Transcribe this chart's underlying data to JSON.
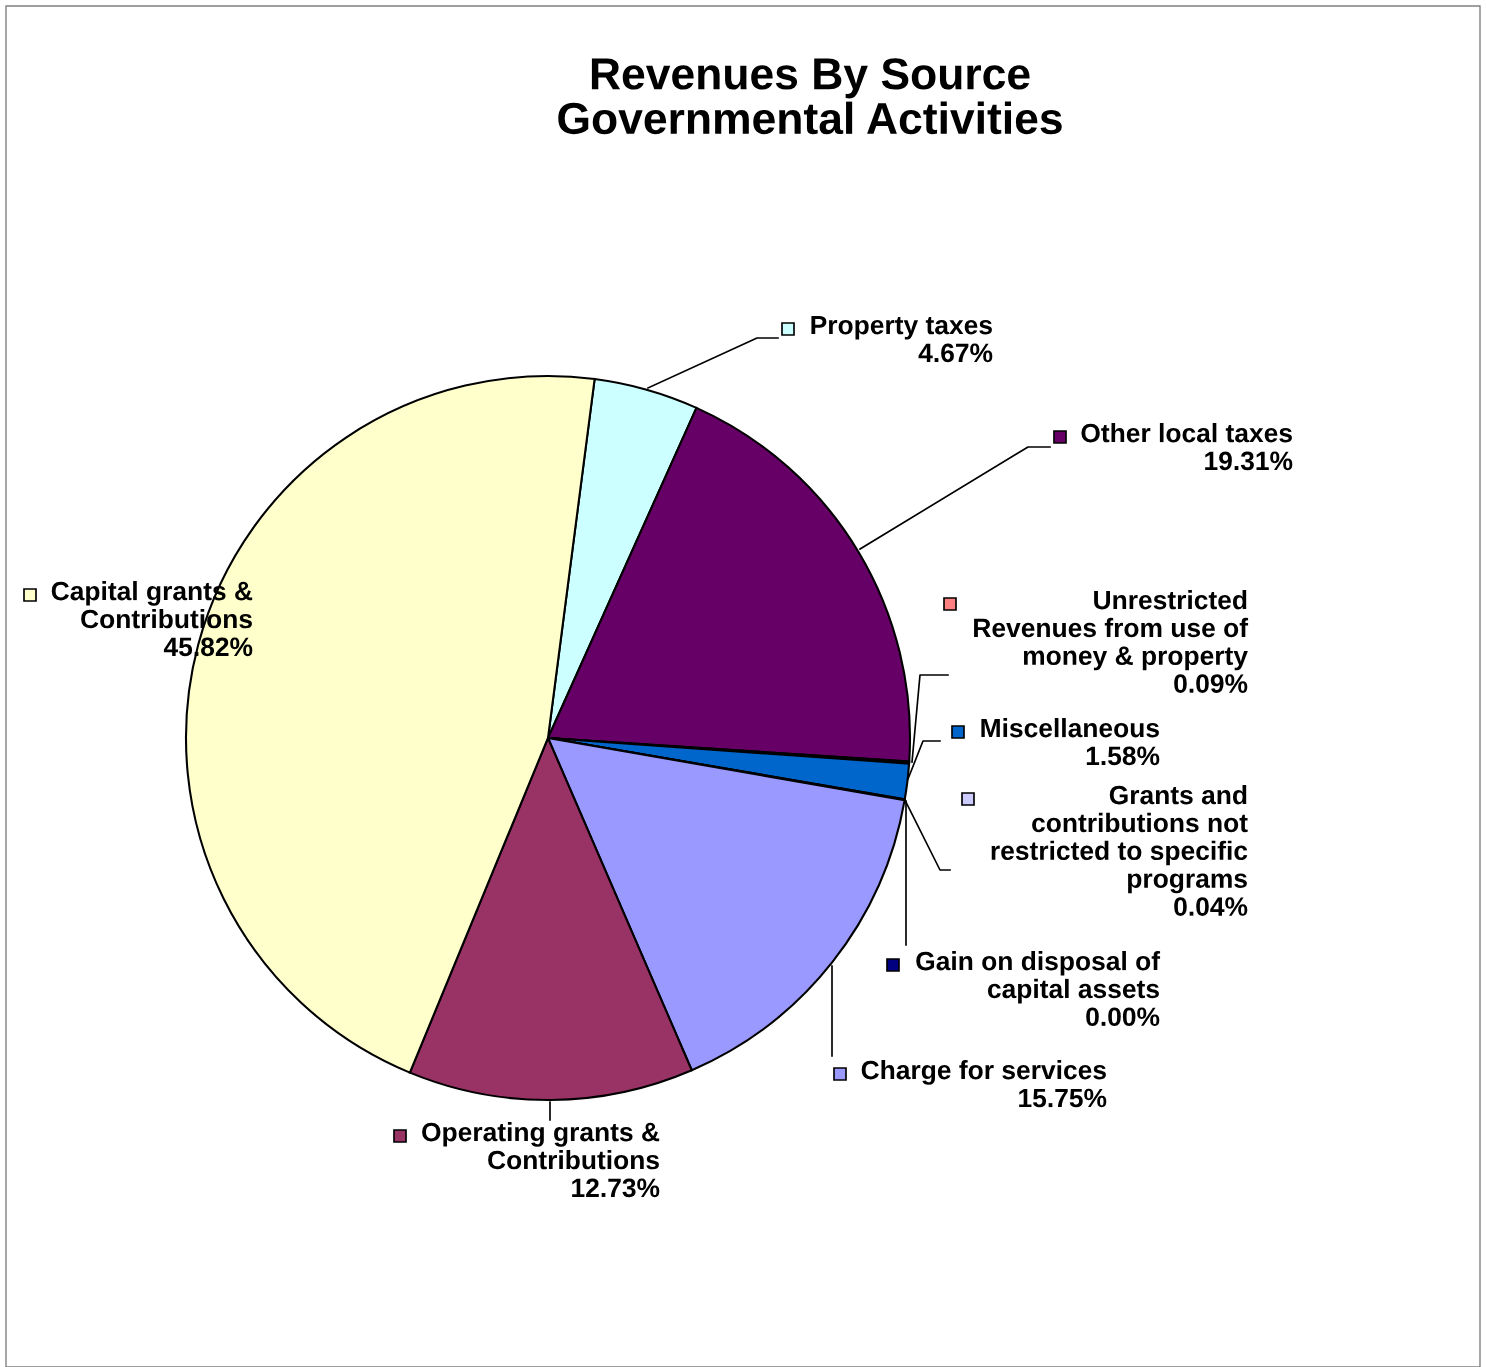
{
  "chart_data": {
    "type": "pie",
    "title": "Revenues By Source\nGovernmental Activities",
    "categories": [
      "Property taxes",
      "Other local taxes",
      "Unrestricted\nRevenues from use of\nmoney & property",
      "Miscellaneous",
      "Grants and\ncontributions not\nrestricted to specific\nprograms",
      "Gain on disposal of\ncapital assets",
      "Charge for services",
      "Operating grants &\nContributions",
      "Capital grants &\nContributions"
    ],
    "legend": "right",
    "values": [
      4.67,
      19.31,
      0.09,
      1.58,
      0.04,
      0.0,
      15.75,
      12.73,
      45.82
    ],
    "colors": [
      "#ccffff",
      "#660066",
      "#ff8080",
      "#0066cc",
      "#ccccff",
      "#000080",
      "#9999ff",
      "#993366",
      "#ffffcc"
    ],
    "value_labels": [
      "4.67%",
      "19.31%",
      "0.09%",
      "1.58%",
      "0.04%",
      "0.00%",
      "15.75%",
      "12.73%",
      "45.82%"
    ]
  }
}
